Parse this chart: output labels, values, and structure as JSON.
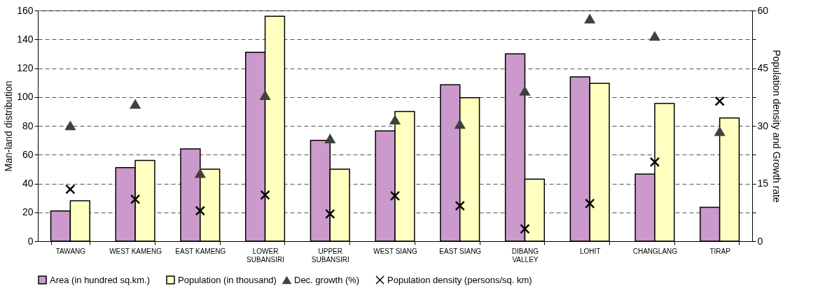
{
  "chart_data": {
    "type": "bar",
    "ylabel": "Man-land distribution",
    "y2label": "Population density and Growth rate",
    "categories": [
      "TAWANG",
      "WEST KAMENG",
      "EAST KAMENG",
      "LOWER\nSUBANSIRI",
      "UPPER\nSUBANSIRI",
      "WEST SIANG",
      "EAST SIANG",
      "DIBANG\nVALLEY",
      "LOHIT",
      "CHANGLANG",
      "TIRAP"
    ],
    "series": [
      {
        "name": "Area (in hundred sq.km.)",
        "color": "#cc99cc",
        "values": [
          21,
          51,
          64,
          131,
          70,
          76.5,
          108.5,
          130,
          114,
          46.5,
          23.5
        ]
      },
      {
        "name": "Population (in thousand)",
        "color": "#ffffc0",
        "values": [
          28,
          56,
          50,
          156,
          50,
          90,
          99.5,
          43,
          109.5,
          95.5,
          85.5
        ]
      },
      {
        "name": "Dec. growth (%)",
        "type": "scatter",
        "axis": "y2",
        "marker": "triangle",
        "color": "#404040",
        "values": [
          30,
          35.6,
          17.6,
          37.9,
          26.6,
          31.5,
          30.4,
          39,
          57.8,
          53.3,
          28.5
        ]
      },
      {
        "name": "Population density (persons/sq. km)",
        "type": "scatter",
        "axis": "y2",
        "marker": "cross",
        "color": "#000000",
        "values": [
          13.5,
          10.9,
          7.9,
          12,
          7.1,
          11.8,
          9.2,
          3.2,
          9.8,
          20.6,
          36.4
        ]
      }
    ],
    "ylim": [
      0,
      160
    ],
    "yticks": [
      0,
      20,
      40,
      60,
      80,
      100,
      120,
      140,
      160
    ],
    "y2lim": [
      0,
      60
    ],
    "y2ticks": [
      0,
      {
        "value": 7.5,
        "label": null
      },
      15,
      {
        "value": 22.5,
        "label": null
      },
      30,
      {
        "value": 37.5,
        "label": null
      },
      45,
      {
        "value": 52.5,
        "label": null
      },
      60
    ],
    "grid": "y",
    "legend": "bottom"
  }
}
